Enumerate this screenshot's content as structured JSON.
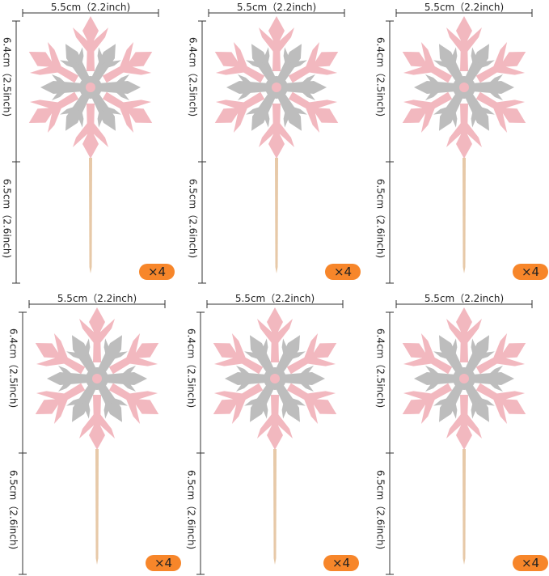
{
  "colors": {
    "pink": "#f2b8bf",
    "silver": "#bdbdbd",
    "stick": "#e7c9a8",
    "badge": "#f7862a",
    "line": "#333333"
  },
  "panels": [
    {
      "width_label": "5.5cm（2.2inch)",
      "top_label": "6.4cm（2.5inch)",
      "bottom_label": "6.5cm（2.6inch)",
      "quantity": "×4",
      "style": 1
    },
    {
      "width_label": "5.5cm（2.2inch)",
      "top_label": "6.4cm（2.5inch)",
      "bottom_label": "6.5cm（2.6inch)",
      "quantity": "×4",
      "style": 2
    },
    {
      "width_label": "5.5cm（2.2inch)",
      "top_label": "6.4cm（2.5inch)",
      "bottom_label": "6.5cm（2.6inch)",
      "quantity": "×4",
      "style": 3
    },
    {
      "width_label": "5.5cm（2.2inch)",
      "top_label": "6.4cm（2.5inch)",
      "bottom_label": "6.5cm（2.6inch)",
      "quantity": "×4",
      "style": 4
    },
    {
      "width_label": "5.5cm（2.2inch)",
      "top_label": "6.4cm（2.5inch)",
      "bottom_label": "6.5cm（2.6inch)",
      "quantity": "×4",
      "style": 5
    },
    {
      "width_label": "5.5cm（2.2inch)",
      "top_label": "6.4cm（2.5inch)",
      "bottom_label": "6.5cm（2.6inch)",
      "quantity": "×4",
      "style": 6
    }
  ]
}
